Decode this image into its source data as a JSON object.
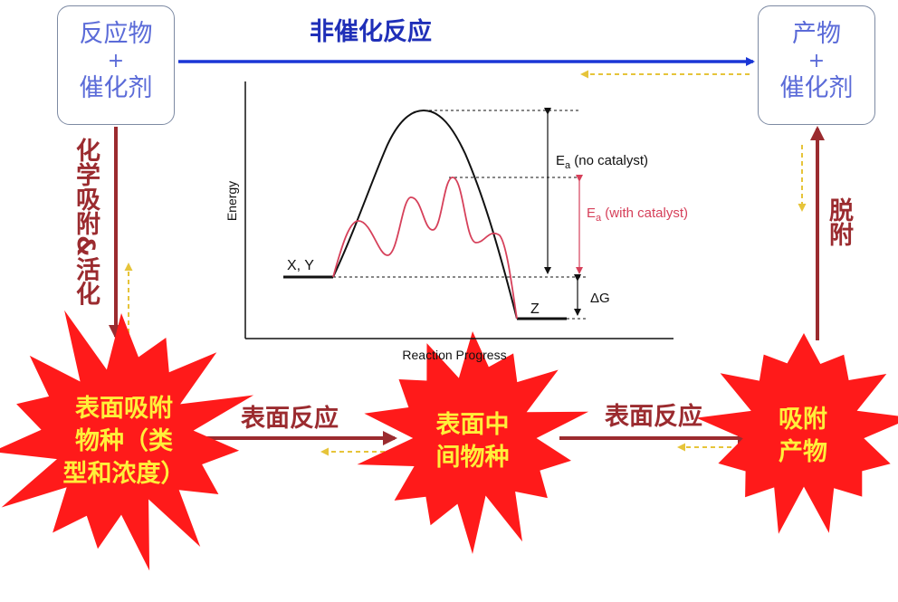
{
  "reactants_box": {
    "line1": "反应物",
    "plus": "+",
    "line2": "催化剂"
  },
  "products_box": {
    "line1": "产物",
    "plus": "+",
    "line2": "催化剂"
  },
  "top_arrow_label": "非催化反应",
  "left_arrow_label": "化学吸附&活化",
  "right_arrow_label": "脱附",
  "surface_reaction_left": "表面反应",
  "surface_reaction_right": "表面反应",
  "star_left": {
    "line1": "表面吸附",
    "line2": "物种（类",
    "line3": "型和浓度）"
  },
  "star_middle": {
    "line1": "表面中",
    "line2": "间物种"
  },
  "star_right": {
    "line1": "吸附",
    "line2": "产物"
  },
  "inset": {
    "ylabel": "Energy",
    "xlabel": "Reaction Progress",
    "reactant_label": "X, Y",
    "product_label": "Z",
    "ea_no_catalyst": {
      "E": "E",
      "sub": "a",
      "rest": " (no catalyst)"
    },
    "ea_with_catalyst": {
      "E": "E",
      "sub": "a",
      "rest": " (with catalyst)"
    },
    "delta_g": "ΔG"
  },
  "colors": {
    "blue_arrow": "#1a36d6",
    "red_arrow": "#9b2b2f",
    "star_fill": "#ff1a1a",
    "star_text": "#ffef3a",
    "dashed_arrow": "#e6c43a",
    "catalyzed_curve": "#d6405a",
    "box_text": "#5b6bd8"
  }
}
